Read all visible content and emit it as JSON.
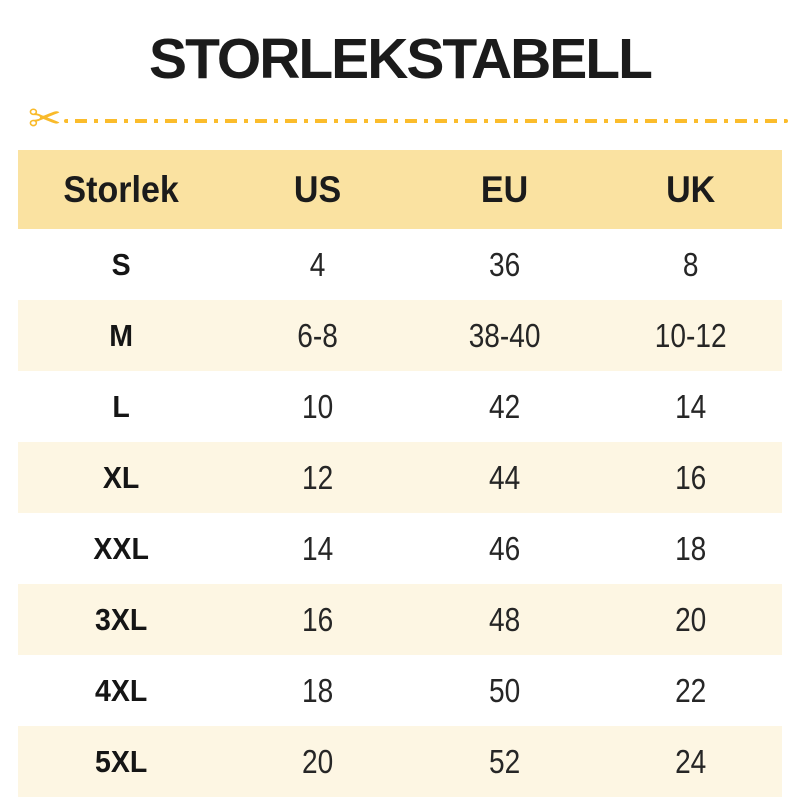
{
  "page": {
    "title": "STORLEKSTABELL"
  },
  "cut_line": {
    "scissors_icon": "✂"
  },
  "table": {
    "headers": [
      "Storlek",
      "US",
      "EU",
      "UK"
    ],
    "rows": [
      {
        "size": "S",
        "us": "4",
        "eu": "36",
        "uk": "8"
      },
      {
        "size": "M",
        "us": "6-8",
        "eu": "38-40",
        "uk": "10-12"
      },
      {
        "size": "L",
        "us": "10",
        "eu": "42",
        "uk": "14"
      },
      {
        "size": "XL",
        "us": "12",
        "eu": "44",
        "uk": "16"
      },
      {
        "size": "XXL",
        "us": "14",
        "eu": "46",
        "uk": "18"
      },
      {
        "size": "3XL",
        "us": "16",
        "eu": "48",
        "uk": "20"
      },
      {
        "size": "4XL",
        "us": "18",
        "eu": "50",
        "uk": "22"
      },
      {
        "size": "5XL",
        "us": "20",
        "eu": "52",
        "uk": "24"
      }
    ]
  },
  "colors": {
    "header_bg": "#fae2a1",
    "row_alt_bg": "#fdf6e3",
    "accent_gold": "#fbbc2b",
    "text": "#1c1c1c",
    "background": "#ffffff"
  }
}
